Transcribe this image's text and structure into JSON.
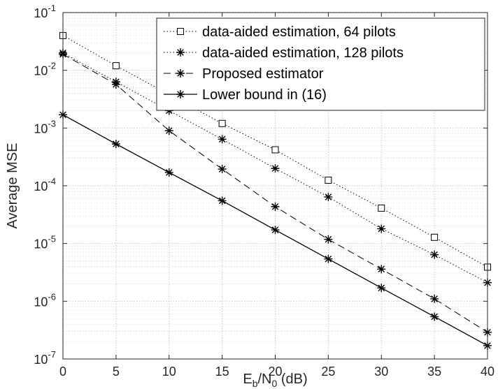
{
  "chart_data": {
    "type": "line",
    "x_scale": "linear",
    "y_scale": "log",
    "xlim": [
      0,
      40
    ],
    "ylim": [
      1e-07,
      0.1
    ],
    "xticks": [
      0,
      5,
      10,
      15,
      20,
      25,
      30,
      35,
      40
    ],
    "xtick_labels": [
      "0",
      "5",
      "10",
      "15",
      "20",
      "25",
      "30",
      "35",
      "40"
    ],
    "yticks": [
      1e-07,
      1e-06,
      1e-05,
      0.0001,
      0.001,
      0.01,
      0.1
    ],
    "ytick_labels": [
      {
        "base": "10",
        "exp": "-7"
      },
      {
        "base": "10",
        "exp": "-6"
      },
      {
        "base": "10",
        "exp": "-5"
      },
      {
        "base": "10",
        "exp": "-4"
      },
      {
        "base": "10",
        "exp": "-3"
      },
      {
        "base": "10",
        "exp": "-2"
      },
      {
        "base": "10",
        "exp": "-1"
      }
    ],
    "xlabel": {
      "base_e": "E",
      "sub_b": "b",
      "slash_n": "/N",
      "sub_0": "0",
      "unit": " (dB)"
    },
    "ylabel": "Average MSE",
    "grid": true,
    "minor_grid": true,
    "legend_position": "top-right",
    "x": [
      0,
      5,
      10,
      15,
      20,
      25,
      30,
      35,
      40
    ],
    "series": [
      {
        "name": "data-aided estimation, 64 pilots",
        "line": "dotted",
        "marker": "square",
        "values": [
          0.04,
          0.012,
          0.0038,
          0.0012,
          0.00042,
          0.000125,
          4.1e-05,
          1.28e-05,
          3.9e-06
        ]
      },
      {
        "name": "data-aided estimation, 128 pilots",
        "line": "dotted",
        "marker": "asterisk",
        "values": [
          0.02,
          0.0063,
          0.002,
          0.00064,
          0.0002,
          6.4e-05,
          1.8e-05,
          6.4e-06,
          2.1e-06
        ]
      },
      {
        "name": "Proposed estimator",
        "line": "dashed",
        "marker": "asterisk",
        "values": [
          0.019,
          0.0057,
          0.0009,
          0.000195,
          4.35e-05,
          1.18e-05,
          3.6e-06,
          1.1e-06,
          2.9e-07
        ]
      },
      {
        "name": "Lower bound in (16)",
        "line": "solid",
        "marker": "asterisk",
        "values": [
          0.0017,
          0.00053,
          0.00017,
          5.5e-05,
          1.72e-05,
          5.4e-06,
          1.7e-06,
          5.4e-07,
          1.7e-07
        ]
      }
    ]
  }
}
